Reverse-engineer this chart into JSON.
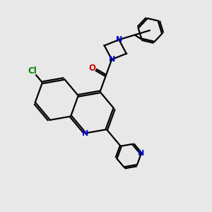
{
  "background_color": "#e8e8e8",
  "bond_color": "#000000",
  "nitrogen_color": "#0000cc",
  "oxygen_color": "#cc0000",
  "chlorine_color": "#008000",
  "linewidth": 1.6,
  "figsize": [
    3.0,
    3.0
  ],
  "dpi": 100,
  "xlim": [
    0,
    10
  ],
  "ylim": [
    0,
    10
  ]
}
